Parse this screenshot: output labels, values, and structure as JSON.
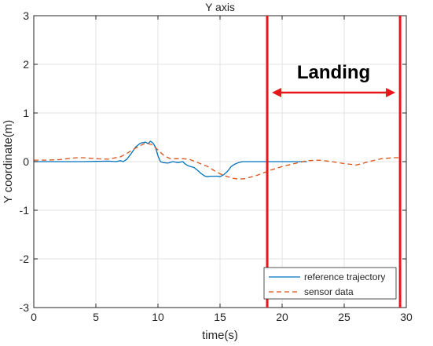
{
  "chart_data": {
    "type": "line",
    "title": "Y axis",
    "xlabel": "time(s)",
    "ylabel": "Y coordinate(m)",
    "xlim": [
      0,
      30
    ],
    "ylim": [
      -3,
      3
    ],
    "xticks": [
      0,
      5,
      10,
      15,
      20,
      25,
      30
    ],
    "yticks": [
      -3,
      -2,
      -1,
      0,
      1,
      2,
      3
    ],
    "grid": true,
    "legend_position": "bottom-right",
    "series": [
      {
        "name": "reference trajectory",
        "style": "solid",
        "color": "#0072bd",
        "x": [
          0,
          2,
          4,
          6,
          6.6,
          7,
          7.2,
          7.5,
          7.8,
          8.2,
          8.6,
          9.0,
          9.2,
          9.4,
          9.6,
          9.8,
          10.0,
          10.2,
          10.4,
          10.8,
          11.2,
          11.6,
          12.0,
          12.2,
          12.4,
          12.6,
          12.9,
          13.2,
          13.5,
          13.8,
          14.0,
          14.2,
          14.5,
          14.8,
          15.0,
          15.3,
          15.6,
          15.9,
          16.2,
          16.5,
          16.8,
          17.2,
          18,
          19,
          20,
          21,
          22
        ],
        "y": [
          0,
          0,
          0,
          0.01,
          0.0,
          0.02,
          0.0,
          0.05,
          0.15,
          0.3,
          0.38,
          0.4,
          0.37,
          0.42,
          0.38,
          0.3,
          0.12,
          0.0,
          -0.02,
          -0.03,
          0.0,
          -0.02,
          0.0,
          -0.05,
          -0.08,
          -0.1,
          -0.12,
          -0.18,
          -0.25,
          -0.3,
          -0.31,
          -0.3,
          -0.3,
          -0.3,
          -0.31,
          -0.27,
          -0.2,
          -0.1,
          -0.05,
          -0.02,
          0.0,
          0.0,
          0.0,
          0.0,
          0.0,
          0.0,
          0.0
        ]
      },
      {
        "name": "sensor data",
        "style": "dashed",
        "color": "#d95319",
        "x": [
          0,
          1,
          2,
          3,
          3.5,
          4,
          5,
          6,
          7,
          7.5,
          8,
          8.5,
          9,
          9.5,
          10,
          10.5,
          11,
          12,
          12.5,
          13,
          13.5,
          14,
          14.5,
          15,
          15.5,
          16,
          16.5,
          17,
          18,
          19,
          20,
          21,
          22,
          23,
          24,
          25,
          26,
          27,
          28,
          29,
          29.5
        ],
        "y": [
          0.03,
          0.03,
          0.04,
          0.07,
          0.08,
          0.08,
          0.06,
          0.05,
          0.1,
          0.17,
          0.25,
          0.32,
          0.38,
          0.35,
          0.24,
          0.12,
          0.06,
          0.06,
          0.05,
          0.0,
          -0.05,
          -0.1,
          -0.18,
          -0.25,
          -0.3,
          -0.34,
          -0.36,
          -0.35,
          -0.28,
          -0.18,
          -0.1,
          -0.04,
          0.02,
          0.03,
          0.0,
          -0.04,
          -0.07,
          0.0,
          0.06,
          0.08,
          0.08
        ]
      }
    ],
    "annotations": {
      "text": "Landing",
      "x_start": 18.8,
      "x_end": 29.5,
      "color": "#e8151b"
    }
  }
}
